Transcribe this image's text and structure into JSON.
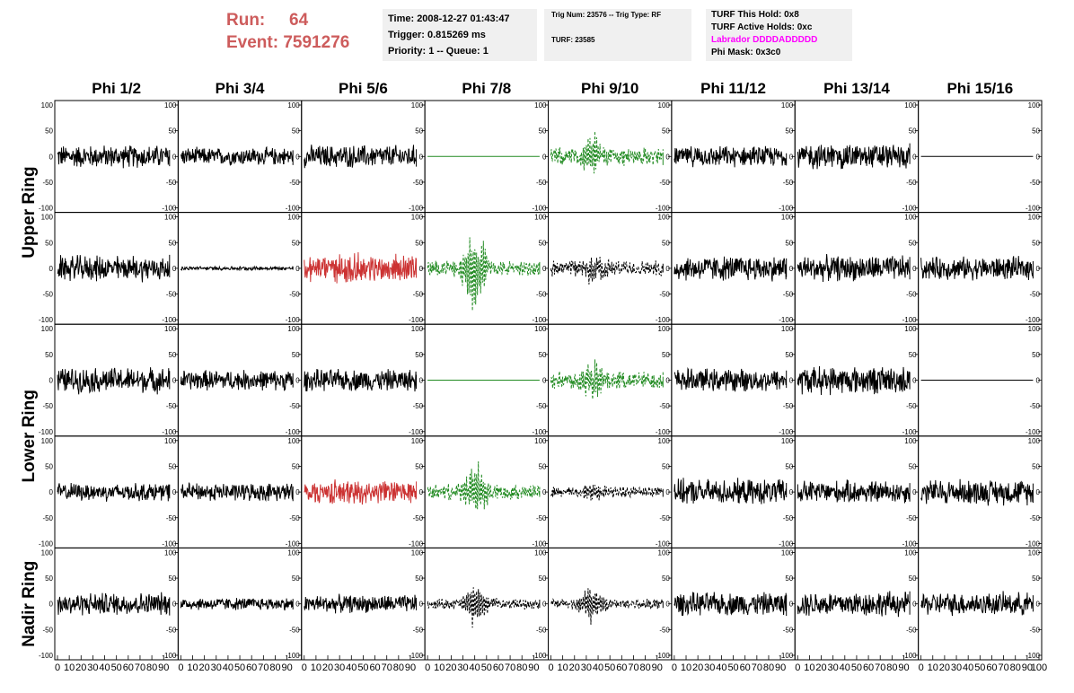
{
  "header": {
    "run_label": "Run:",
    "run_value": "64",
    "event_label": "Event:",
    "event_value": "7591276",
    "time": "Time: 2008-12-27 01:43:47",
    "trigger": "Trigger: 0.815269 ms",
    "priority": "Priority: 1 -- Queue: 1",
    "trig_num": "Trig Num: 23576 -- Trig Type: RF",
    "turf": "TURF: 23585",
    "turf_this_hold": "TURF This Hold: 0x8",
    "turf_active_holds": "TURF Active Holds: 0xc",
    "labrador": "Labrador DDDDADDDDD",
    "phi_mask": "Phi Mask: 0x3c0"
  },
  "colors": {
    "run_text": "#cd5c5c",
    "info_bg": "#f0f0f0",
    "labrador": "#ff00ff",
    "trace_black": "#000000",
    "trace_red": "#cc3333",
    "trace_green": "#228b22"
  },
  "chart_data": {
    "type": "line",
    "title": "",
    "columns": [
      "Phi 1/2",
      "Phi 3/4",
      "Phi 5/6",
      "Phi 7/8",
      "Phi 9/10",
      "Phi 11/12",
      "Phi 13/14",
      "Phi 15/16"
    ],
    "ring_labels": [
      "Upper Ring",
      "Lower Ring",
      "Nadir Ring"
    ],
    "xlim": [
      0,
      100
    ],
    "ylim": [
      -100,
      100
    ],
    "x_ticks": [
      "0",
      "10",
      "20",
      "30",
      "40",
      "50",
      "60",
      "70",
      "80",
      "90",
      "100"
    ],
    "y_ticks": [
      "100",
      "50",
      "0",
      "-50",
      "-100"
    ],
    "rows": [
      {
        "ring": "Upper Ring",
        "panels": [
          {
            "color": "black",
            "style": "solid",
            "amp": 18,
            "burst": 0
          },
          {
            "color": "black",
            "style": "solid",
            "amp": 14,
            "burst": 0
          },
          {
            "color": "black",
            "style": "solid",
            "amp": 18,
            "burst": 0
          },
          {
            "color": "green",
            "style": "solid",
            "amp": 0,
            "burst": 0
          },
          {
            "color": "green",
            "style": "dashed",
            "amp": 14,
            "burst": 28
          },
          {
            "color": "black",
            "style": "solid",
            "amp": 16,
            "burst": 0
          },
          {
            "color": "black",
            "style": "solid",
            "amp": 20,
            "burst": 0
          },
          {
            "color": "black",
            "style": "solid",
            "amp": 0,
            "burst": 0
          }
        ]
      },
      {
        "ring": "Upper Ring",
        "panels": [
          {
            "color": "black",
            "style": "solid",
            "amp": 20,
            "burst": 0
          },
          {
            "color": "black",
            "style": "solid",
            "amp": 3,
            "burst": 0
          },
          {
            "color": "red",
            "style": "solid",
            "amp": 22,
            "burst": 8
          },
          {
            "color": "green",
            "style": "dashed",
            "amp": 12,
            "burst": 60
          },
          {
            "color": "black",
            "style": "dashed",
            "amp": 12,
            "burst": 20
          },
          {
            "color": "black",
            "style": "solid",
            "amp": 20,
            "burst": 0
          },
          {
            "color": "black",
            "style": "solid",
            "amp": 20,
            "burst": 0
          },
          {
            "color": "black",
            "style": "solid",
            "amp": 18,
            "burst": 0
          }
        ]
      },
      {
        "ring": "Lower Ring",
        "panels": [
          {
            "color": "black",
            "style": "solid",
            "amp": 20,
            "burst": 0
          },
          {
            "color": "black",
            "style": "solid",
            "amp": 16,
            "burst": 0
          },
          {
            "color": "black",
            "style": "solid",
            "amp": 17,
            "burst": 0
          },
          {
            "color": "green",
            "style": "solid",
            "amp": 0,
            "burst": 0
          },
          {
            "color": "green",
            "style": "dashed",
            "amp": 14,
            "burst": 26
          },
          {
            "color": "black",
            "style": "solid",
            "amp": 18,
            "burst": 0
          },
          {
            "color": "black",
            "style": "solid",
            "amp": 22,
            "burst": 0
          },
          {
            "color": "black",
            "style": "solid",
            "amp": 0,
            "burst": 0
          }
        ]
      },
      {
        "ring": "Lower Ring",
        "panels": [
          {
            "color": "black",
            "style": "solid",
            "amp": 14,
            "burst": 0
          },
          {
            "color": "black",
            "style": "solid",
            "amp": 14,
            "burst": 0
          },
          {
            "color": "red",
            "style": "solid",
            "amp": 18,
            "burst": 6
          },
          {
            "color": "green",
            "style": "dashed",
            "amp": 12,
            "burst": 40
          },
          {
            "color": "black",
            "style": "dashed",
            "amp": 9,
            "burst": 10
          },
          {
            "color": "black",
            "style": "solid",
            "amp": 20,
            "burst": 0
          },
          {
            "color": "black",
            "style": "solid",
            "amp": 18,
            "burst": 0
          },
          {
            "color": "black",
            "style": "solid",
            "amp": 20,
            "burst": 0
          }
        ]
      },
      {
        "ring": "Nadir Ring",
        "panels": [
          {
            "color": "black",
            "style": "solid",
            "amp": 18,
            "burst": 0
          },
          {
            "color": "black",
            "style": "solid",
            "amp": 10,
            "burst": 0
          },
          {
            "color": "black",
            "style": "solid",
            "amp": 14,
            "burst": 0
          },
          {
            "color": "black",
            "style": "dashed",
            "amp": 8,
            "burst": 28
          },
          {
            "color": "black",
            "style": "dashed",
            "amp": 8,
            "burst": 28
          },
          {
            "color": "black",
            "style": "solid",
            "amp": 18,
            "burst": 0
          },
          {
            "color": "black",
            "style": "solid",
            "amp": 20,
            "burst": 0
          },
          {
            "color": "black",
            "style": "solid",
            "amp": 18,
            "burst": 0
          }
        ]
      }
    ]
  }
}
